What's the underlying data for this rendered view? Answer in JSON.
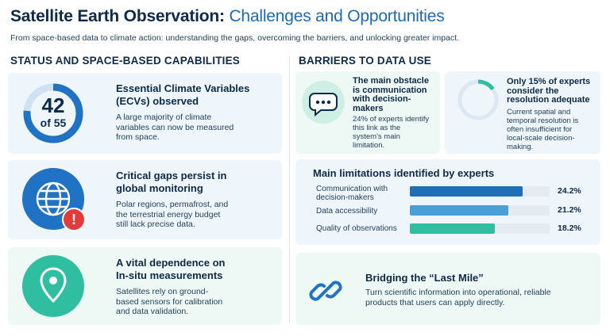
{
  "header": {
    "title_bold": "Satellite Earth Observation:",
    "title_light": "Challenges and Opportunities",
    "subtitle": "From space-based data to climate action: understanding the gaps, overcoming the barriers, and unlocking greater impact."
  },
  "colors": {
    "navy": "#0d2a4a",
    "accent_blue": "#1a6ab5",
    "ring_blue": "#1f72c4",
    "teal": "#2fbfa0",
    "alert_red": "#e23b3b"
  },
  "left_section": {
    "heading": "STATUS AND SPACE-BASED CAPABILITIES",
    "cards": [
      {
        "title_line1": "Essential Climate Variables",
        "title_line2": "(ECVs) observed",
        "text_lines": [
          "A large majority of climate",
          "variables can now be measured",
          "from space."
        ],
        "ring_value": "42",
        "ring_total": "of 55",
        "ring_fraction": 0.764
      },
      {
        "title_line1": "Critical gaps persist in",
        "title_line2": "global monitoring",
        "text_lines": [
          "Polar regions, permafrost, and",
          "the terrestrial energy budget",
          "still lack precise data."
        ],
        "icon": "globe-icon",
        "badge_icon": "exclamation-icon",
        "badge_text": "!"
      },
      {
        "title_line1": "A vital dependence on",
        "title_line2": "In-situ measurements",
        "text_lines": [
          "Satellites rely on ground-",
          "based sensors for calibration",
          "and data validation."
        ],
        "icon": "location-pin-icon"
      }
    ]
  },
  "right_section": {
    "heading": "BARRIERS TO DATA USE",
    "obstacle_card": {
      "icon": "chat-bubble-icon",
      "title_lines": [
        "The main obstacle",
        "is communication",
        "with decision-",
        "makers"
      ],
      "text_lines": [
        "24% of experts identify",
        "this link as the",
        "system's main",
        "limitation."
      ]
    },
    "resolution_card": {
      "title_lines": [
        "Only 15% of experts",
        "consider the",
        "resolution adequate"
      ],
      "text_lines": [
        "Current spatial and",
        "temporal resolution is",
        "often insufficient for",
        "local-scale decision-",
        "making."
      ],
      "ring_fraction": 0.15
    },
    "limitations": {
      "heading": "Main limitations identified by experts",
      "items": [
        {
          "label_lines": [
            "Communication with",
            "decision-makers"
          ],
          "value_text": "24.2%",
          "value": 24.2,
          "color": "#1e6fb8"
        },
        {
          "label_lines": [
            "Data accessibility"
          ],
          "value_text": "21.2%",
          "value": 21.2,
          "color": "#4a9fd6"
        },
        {
          "label_lines": [
            "Quality of observations"
          ],
          "value_text": "18.2%",
          "value": 18.2,
          "color": "#2fbfa0"
        }
      ]
    },
    "last_mile": {
      "icon": "chain-link-icon",
      "title": "Bridging the “Last Mile”",
      "text_lines": [
        "Turn scientific information into operational, reliable",
        "products that users can apply directly."
      ]
    }
  }
}
